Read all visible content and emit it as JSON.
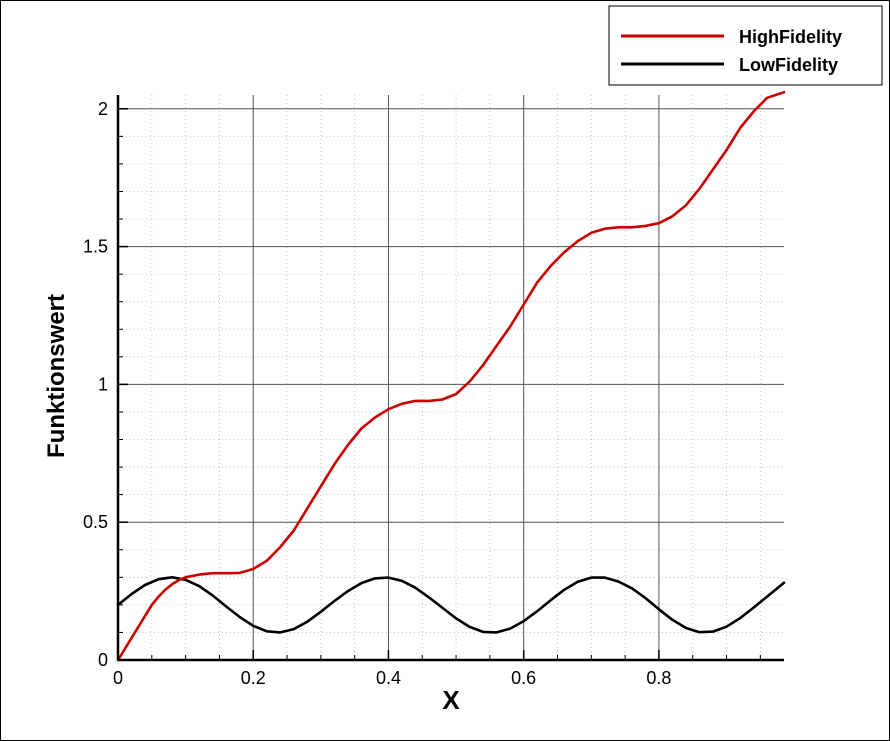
{
  "chart_data": {
    "type": "line",
    "title": "",
    "xlabel": "X",
    "ylabel": "Funktionswert",
    "xlim": [
      0,
      0.985
    ],
    "ylim": [
      0,
      2.05
    ],
    "x_ticks": [
      0,
      0.2,
      0.4,
      0.6,
      0.8
    ],
    "x_tick_labels": [
      "0",
      "0.2",
      "0.4",
      "0.6",
      "0.8"
    ],
    "y_ticks": [
      0,
      0.5,
      1,
      1.5,
      2
    ],
    "y_tick_labels": [
      "0",
      "0.5",
      "1",
      "1.5",
      "2"
    ],
    "x_minor_step": 0.05,
    "y_minor_step": 0.1,
    "grid": true,
    "legend_position": "top-right",
    "series": [
      {
        "name": "HighFidelity",
        "color": "#cc0000",
        "x": [
          0,
          0.01,
          0.02,
          0.03,
          0.04,
          0.05,
          0.06,
          0.07,
          0.08,
          0.09,
          0.1,
          0.12,
          0.14,
          0.16,
          0.18,
          0.2,
          0.22,
          0.24,
          0.26,
          0.28,
          0.3,
          0.32,
          0.34,
          0.36,
          0.38,
          0.4,
          0.42,
          0.44,
          0.46,
          0.48,
          0.5,
          0.52,
          0.54,
          0.56,
          0.58,
          0.6,
          0.62,
          0.64,
          0.66,
          0.68,
          0.7,
          0.72,
          0.74,
          0.76,
          0.78,
          0.8,
          0.82,
          0.84,
          0.86,
          0.88,
          0.9,
          0.92,
          0.94,
          0.96,
          0.985
        ],
        "y": [
          0,
          0.04,
          0.08,
          0.12,
          0.16,
          0.2,
          0.23,
          0.255,
          0.275,
          0.29,
          0.3,
          0.31,
          0.315,
          0.315,
          0.316,
          0.33,
          0.36,
          0.41,
          0.47,
          0.55,
          0.63,
          0.71,
          0.78,
          0.84,
          0.88,
          0.91,
          0.93,
          0.94,
          0.94,
          0.945,
          0.965,
          1.01,
          1.07,
          1.14,
          1.21,
          1.29,
          1.37,
          1.43,
          1.48,
          1.52,
          1.55,
          1.565,
          1.57,
          1.57,
          1.575,
          1.585,
          1.61,
          1.65,
          1.71,
          1.78,
          1.85,
          1.93,
          1.99,
          2.04,
          2.06
        ]
      },
      {
        "name": "LowFidelity",
        "color": "#000000",
        "x": [
          0,
          0.02,
          0.04,
          0.06,
          0.08,
          0.1,
          0.12,
          0.14,
          0.16,
          0.18,
          0.2,
          0.22,
          0.24,
          0.26,
          0.28,
          0.3,
          0.32,
          0.34,
          0.36,
          0.38,
          0.4,
          0.42,
          0.44,
          0.46,
          0.48,
          0.5,
          0.52,
          0.54,
          0.56,
          0.58,
          0.6,
          0.62,
          0.64,
          0.66,
          0.68,
          0.7,
          0.72,
          0.74,
          0.76,
          0.78,
          0.8,
          0.82,
          0.84,
          0.86,
          0.88,
          0.9,
          0.92,
          0.94,
          0.96,
          0.985
        ],
        "y": [
          0.2,
          0.239,
          0.272,
          0.293,
          0.3,
          0.291,
          0.268,
          0.234,
          0.194,
          0.156,
          0.124,
          0.104,
          0.1,
          0.112,
          0.139,
          0.175,
          0.214,
          0.25,
          0.279,
          0.296,
          0.299,
          0.287,
          0.262,
          0.227,
          0.189,
          0.151,
          0.12,
          0.102,
          0.1,
          0.114,
          0.141,
          0.177,
          0.217,
          0.255,
          0.284,
          0.299,
          0.299,
          0.285,
          0.26,
          0.225,
          0.184,
          0.146,
          0.116,
          0.101,
          0.103,
          0.121,
          0.152,
          0.19,
          0.23,
          0.28
        ]
      }
    ]
  }
}
